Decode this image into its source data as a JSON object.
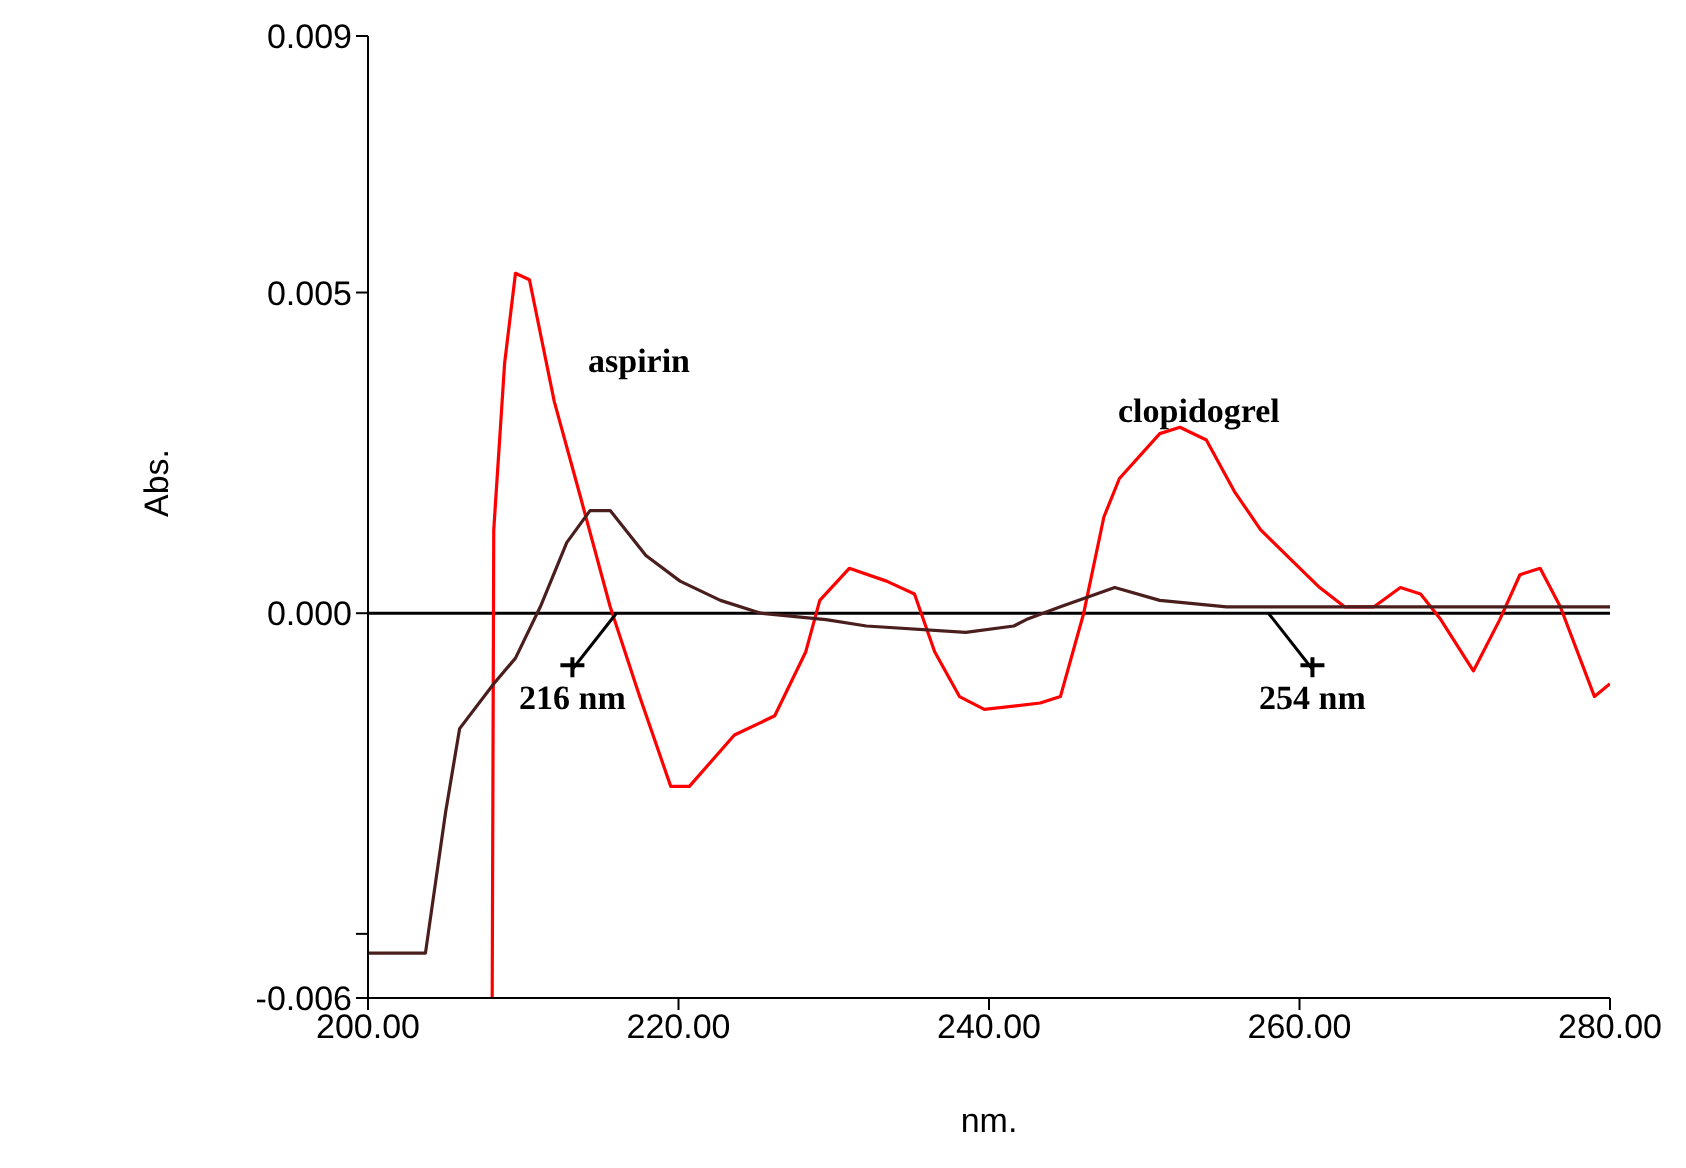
{
  "chart_data": {
    "type": "line",
    "xlabel": "nm.",
    "ylabel": "Abs.",
    "marker": "none",
    "xlim": [
      200,
      280
    ],
    "xticks": [
      {
        "value": 200,
        "label": "200.00"
      },
      {
        "value": 220,
        "label": "220.00"
      },
      {
        "value": 240,
        "label": "240.00"
      },
      {
        "value": 260,
        "label": "260.00"
      },
      {
        "value": 280,
        "label": "280.00"
      }
    ],
    "ylim": [
      -0.006,
      0.009
    ],
    "yticks": [
      {
        "value": -0.006,
        "label": "-0.006"
      },
      {
        "value": -0.005,
        "label": null
      },
      {
        "value": 0,
        "label": "0.000"
      },
      {
        "value": 0.005,
        "label": "0.005"
      },
      {
        "value": 0.009,
        "label": "0.009"
      }
    ],
    "ref_lines": [
      {
        "axis": "y",
        "value": 0,
        "label": null,
        "color": "#000000"
      }
    ],
    "annotations": [
      "aspirin",
      "clopidogrel",
      {
        "text": "216 nm",
        "x": 216,
        "y": 0
      },
      {
        "text": "254 nm",
        "x": 258,
        "y": 0
      }
    ],
    "series": [
      {
        "color": "#ff0000",
        "x": [
          208.0,
          208.1,
          208.8,
          209.5,
          210.4,
          212.0,
          213.7,
          215.6,
          217.5,
          219.5,
          220.7,
          223.6,
          226.2,
          228.2,
          229.1,
          231.0,
          233.4,
          235.2,
          236.5,
          238.1,
          239.7,
          243.3,
          244.6,
          246.1,
          247.4,
          248.4,
          251.0,
          252.3,
          254.0,
          255.8,
          257.5,
          259.6,
          261.3,
          262.9,
          264.8,
          266.5,
          267.8,
          269.1,
          271.2,
          272.9,
          274.2,
          275.5,
          276.8,
          279.0,
          280.0
        ],
        "values": [
          -0.006,
          0.0013,
          0.0039,
          0.0053,
          0.0052,
          0.0033,
          0.0018,
          0.0001,
          -0.0013,
          -0.0027,
          -0.0027,
          -0.0019,
          -0.0016,
          -0.0006,
          0.0002,
          0.0007,
          0.0005,
          0.0003,
          -0.0006,
          -0.0013,
          -0.0015,
          -0.0014,
          -0.0013,
          0.0,
          0.0015,
          0.0021,
          0.0028,
          0.0029,
          0.0027,
          0.0019,
          0.0013,
          0.0008,
          0.0004,
          0.0001,
          0.0001,
          0.0004,
          0.0003,
          -0.0001,
          -0.0009,
          -0.0001,
          0.0006,
          0.0007,
          0.0001,
          -0.0013,
          -0.0011
        ]
      },
      {
        "color": "#4b1e1e",
        "x": [
          200,
          203.7,
          205.0,
          205.9,
          208.1,
          209.5,
          211.1,
          212.8,
          214.3,
          215.6,
          217.9,
          220.1,
          222.7,
          225.3,
          229.5,
          232.1,
          238.5,
          241.6,
          242.4,
          244.6,
          248.1,
          251.0,
          255.3,
          259.6,
          268.2,
          280.0
        ],
        "values": [
          -0.0053,
          -0.0053,
          -0.0031,
          -0.0018,
          -0.0011,
          -0.0007,
          0.0001,
          0.0011,
          0.0016,
          0.0016,
          0.0009,
          0.0005,
          0.0002,
          0.0,
          -0.0001,
          -0.0002,
          -0.0003,
          -0.0002,
          -0.0001,
          0.0001,
          0.0004,
          0.0002,
          0.0001,
          0.0001,
          0.0001,
          0.0001
        ]
      }
    ]
  }
}
